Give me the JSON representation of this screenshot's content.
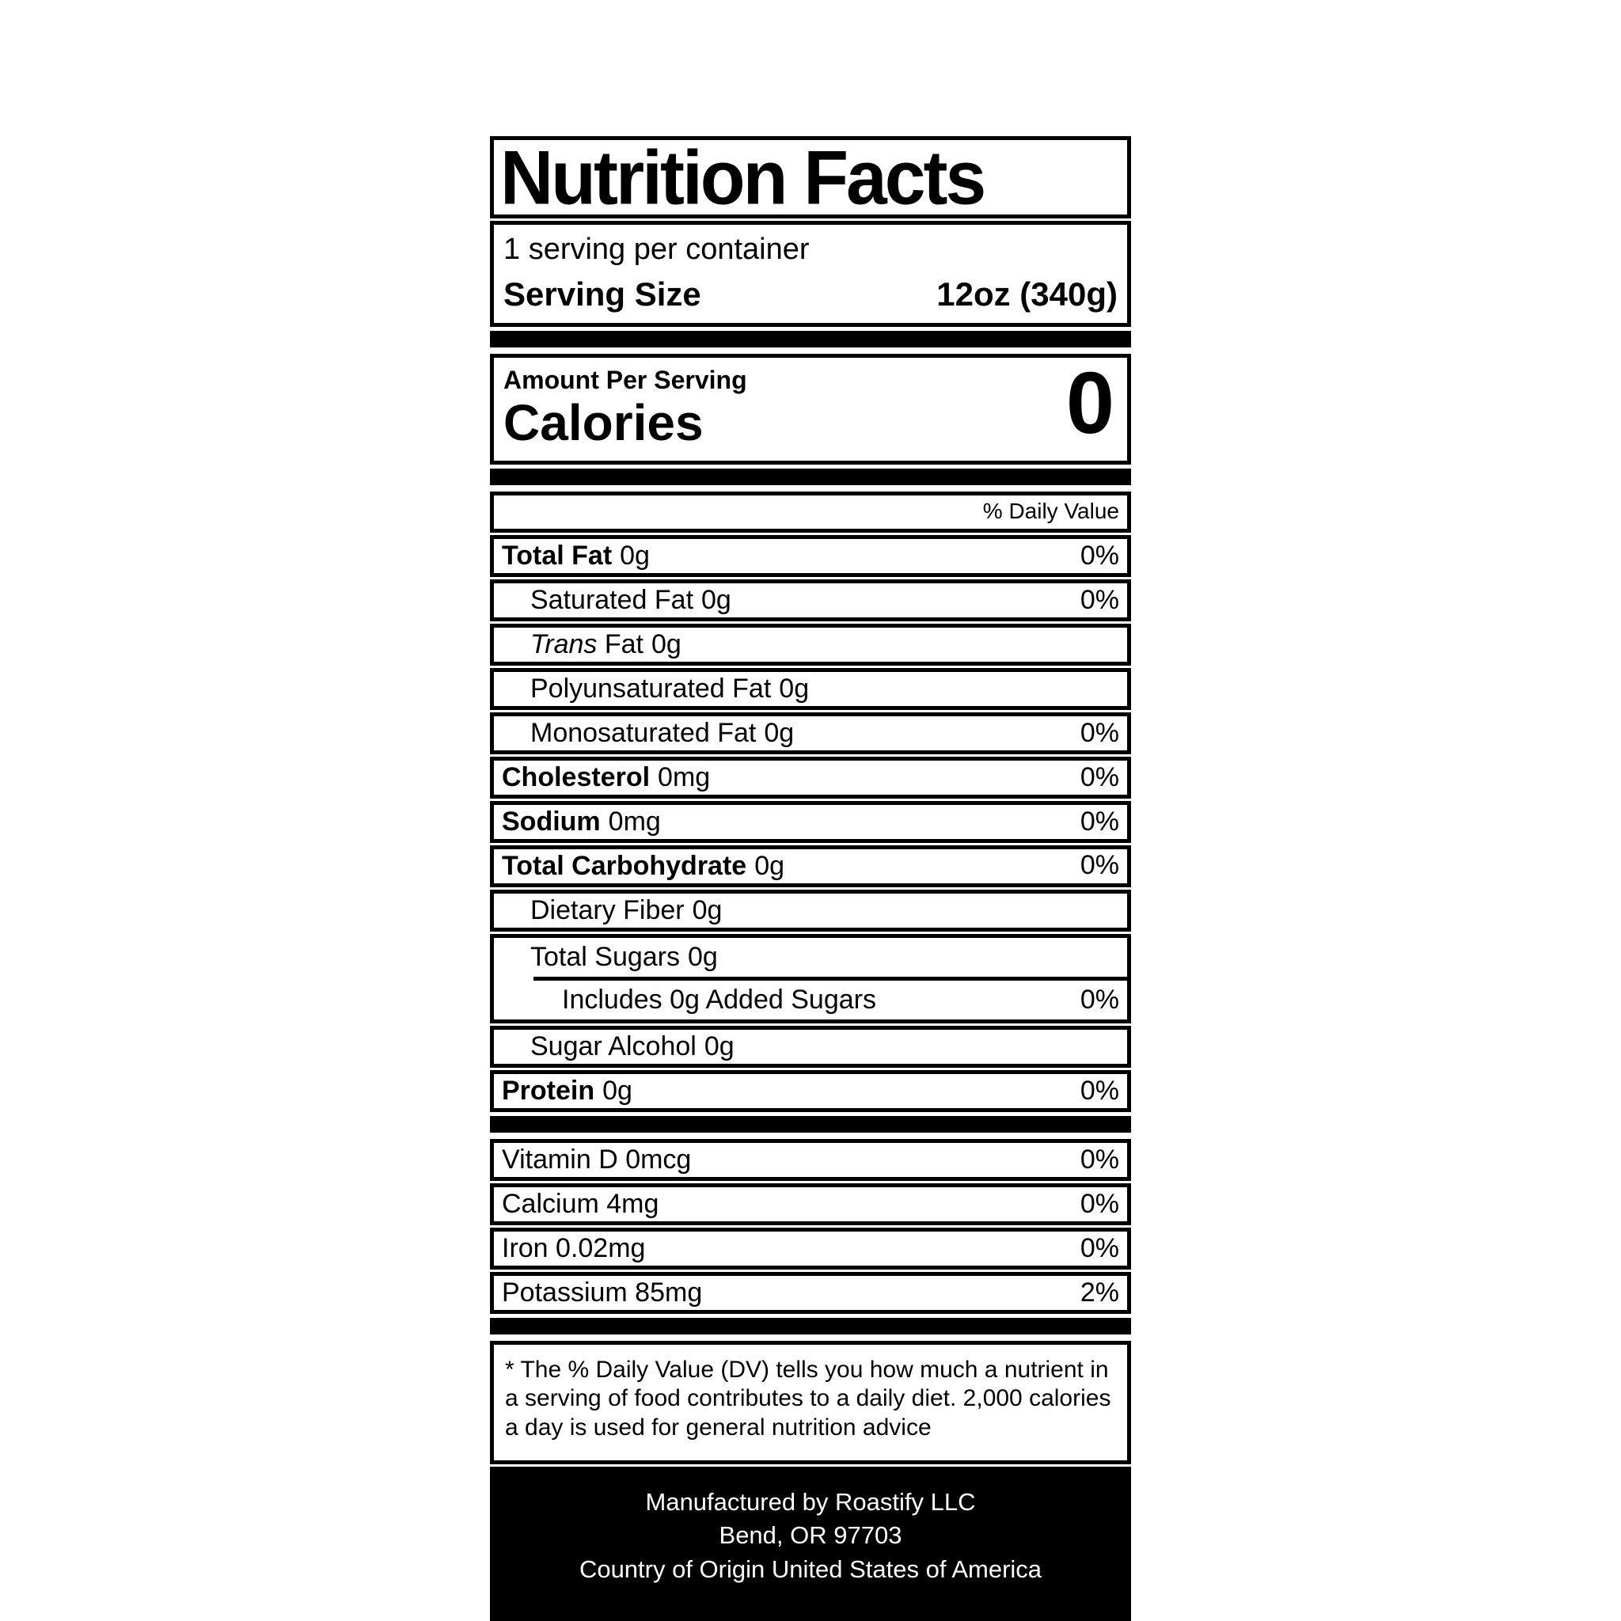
{
  "label": {
    "title": "Nutrition Facts",
    "servings_per_container": "1 serving per container",
    "serving_size_label": "Serving Size",
    "serving_size_value": "12oz (340g)",
    "amount_per_serving": "Amount Per Serving",
    "calories_label": "Calories",
    "calories_value": "0",
    "daily_value_header": "% Daily Value",
    "nutrient_rows": [
      {
        "type": "row",
        "label": "Total Fat",
        "amount": "0g",
        "percent": "0%",
        "bold": true,
        "indent": 0
      },
      {
        "type": "row",
        "label": "Saturated Fat",
        "amount": "0g",
        "percent": "0%",
        "bold": false,
        "indent": 1
      },
      {
        "type": "row",
        "label_italic": "Trans",
        "label": "Fat",
        "amount": "0g",
        "percent": null,
        "bold": false,
        "indent": 1
      },
      {
        "type": "row",
        "label": "Polyunsaturated Fat",
        "amount": "0g",
        "percent": null,
        "bold": false,
        "indent": 1
      },
      {
        "type": "row",
        "label": "Monosaturated Fat",
        "amount": "0g",
        "percent": "0%",
        "bold": false,
        "indent": 1
      },
      {
        "type": "row",
        "label": "Cholesterol",
        "amount": "0mg",
        "percent": "0%",
        "bold": true,
        "indent": 0
      },
      {
        "type": "row",
        "label": "Sodium",
        "amount": "0mg",
        "percent": "0%",
        "bold": true,
        "indent": 0
      },
      {
        "type": "row",
        "label": "Total Carbohydrate",
        "amount": "0g",
        "percent": "0%",
        "bold": true,
        "indent": 0,
        "percent_top": true
      },
      {
        "type": "row",
        "label": "Dietary Fiber",
        "amount": "0g",
        "percent": null,
        "bold": false,
        "indent": 1
      },
      {
        "type": "group",
        "rows": [
          {
            "label": "Total Sugars",
            "amount": "0g",
            "percent": null,
            "bold": false,
            "indent": 1
          },
          {
            "divider": true
          },
          {
            "label": "Includes 0g Added Sugars",
            "amount": null,
            "percent": "0%",
            "bold": false,
            "indent": 2
          }
        ]
      },
      {
        "type": "row",
        "label": "Sugar Alcohol",
        "amount": "0g",
        "percent": null,
        "bold": false,
        "indent": 1
      },
      {
        "type": "row",
        "label": "Protein",
        "amount": "0g",
        "percent": "0%",
        "bold": true,
        "indent": 0
      }
    ],
    "vitamin_rows": [
      {
        "label": "Vitamin D 0mcg",
        "percent": "0%"
      },
      {
        "label": "Calcium 4mg",
        "percent": "0%"
      },
      {
        "label": "Iron 0.02mg",
        "percent": "0%"
      },
      {
        "label": "Potassium 85mg",
        "percent": "2%"
      }
    ],
    "footnote_lines": [
      "* The % Daily Value (DV) tells you how much a nutrient in",
      "a serving of food contributes to a daily diet. 2,000 calories",
      "a day is used for general nutrition advice"
    ],
    "footer_lines": [
      "Manufactured by Roastify LLC",
      "Bend, OR 97703",
      "Country of Origin United States of America"
    ]
  }
}
